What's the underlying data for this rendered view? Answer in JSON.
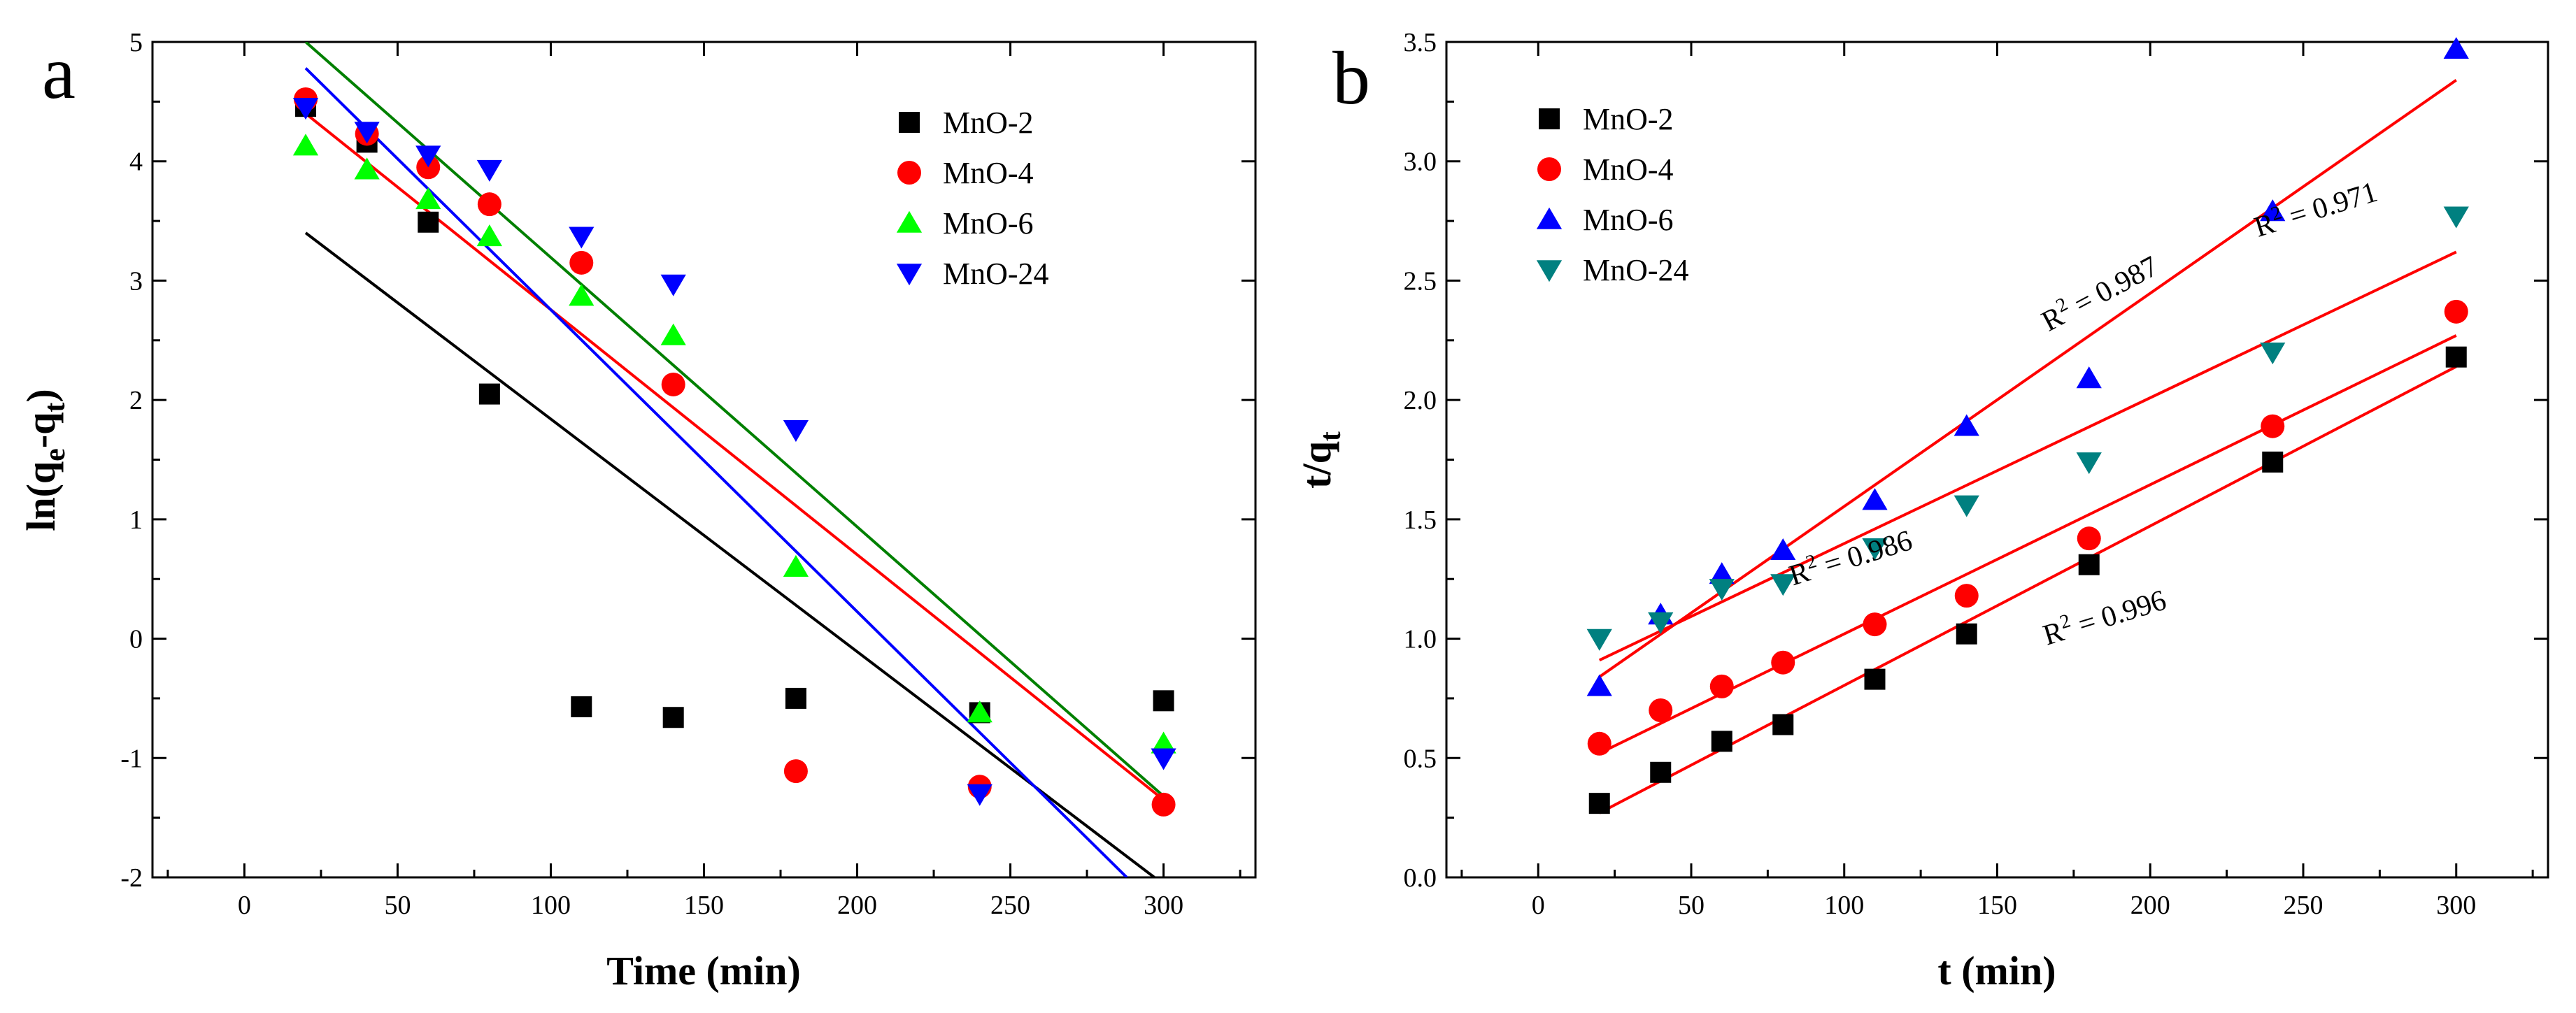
{
  "chart_data": [
    {
      "panel": "a",
      "type": "scatter",
      "xlabel": "Time (min)",
      "ylabel_parts": [
        "ln(q",
        "e",
        "-q",
        "t",
        ")"
      ],
      "xlim": [
        -30,
        330
      ],
      "ylim": [
        -2,
        5
      ],
      "xticks": [
        0,
        50,
        100,
        150,
        200,
        250,
        300
      ],
      "yticks": [
        -2,
        -1,
        0,
        1,
        2,
        3,
        4,
        5
      ],
      "series": [
        {
          "name": "MnO-2",
          "marker": "square",
          "color": "#000000",
          "x": [
            20,
            40,
            60,
            80,
            110,
            140,
            180,
            240,
            300
          ],
          "y": [
            4.46,
            4.16,
            3.49,
            2.05,
            -0.57,
            -0.66,
            -0.5,
            -0.62,
            -0.52
          ],
          "fit": {
            "x": [
              20,
              297
            ],
            "y": [
              3.4,
              -2.0
            ],
            "color": "#000000"
          }
        },
        {
          "name": "MnO-4",
          "marker": "circle",
          "color": "#ff0000",
          "x": [
            20,
            40,
            60,
            80,
            110,
            140,
            180,
            240,
            300
          ],
          "y": [
            4.52,
            4.23,
            3.95,
            3.64,
            3.15,
            2.13,
            -1.11,
            -1.24,
            -1.39
          ],
          "fit": {
            "x": [
              20,
              300
            ],
            "y": [
              4.4,
              -1.35
            ],
            "color": "#ff0000"
          }
        },
        {
          "name": "MnO-6",
          "marker": "triangle",
          "color": "#00ff00",
          "x": [
            20,
            40,
            60,
            80,
            110,
            140,
            180,
            240,
            300
          ],
          "y": [
            4.13,
            3.93,
            3.68,
            3.37,
            2.87,
            2.54,
            0.6,
            -0.62,
            -0.88
          ],
          "fit": {
            "x": [
              20,
              300
            ],
            "y": [
              5.0,
              -1.32
            ],
            "color": "#008000"
          }
        },
        {
          "name": "MnO-24",
          "marker": "triangle-down",
          "color": "#0000ff",
          "x": [
            20,
            40,
            60,
            80,
            110,
            140,
            180,
            240,
            300
          ],
          "y": [
            4.45,
            4.25,
            4.05,
            3.93,
            3.37,
            2.97,
            1.75,
            -1.3,
            -1.0
          ],
          "fit": {
            "x": [
              20,
              288
            ],
            "y": [
              4.78,
              -2.0
            ],
            "color": "#0000ff"
          }
        }
      ]
    },
    {
      "panel": "b",
      "type": "scatter",
      "xlabel": "t (min)",
      "ylabel_parts": [
        "t/q",
        "t"
      ],
      "xlim": [
        -30,
        330
      ],
      "ylim": [
        0.0,
        3.5
      ],
      "xticks": [
        0,
        50,
        100,
        150,
        200,
        250,
        300
      ],
      "yticks": [
        0.0,
        0.5,
        1.0,
        1.5,
        2.0,
        2.5,
        3.0,
        3.5
      ],
      "series": [
        {
          "name": "MnO-2",
          "marker": "square",
          "color": "#000000",
          "x": [
            20,
            40,
            60,
            80,
            110,
            140,
            180,
            240,
            300
          ],
          "y": [
            0.31,
            0.44,
            0.57,
            0.64,
            0.83,
            1.02,
            1.31,
            1.74,
            2.18
          ],
          "fit": {
            "x": [
              20,
              300
            ],
            "y": [
              0.27,
              2.14
            ],
            "color": "#ff0000"
          }
        },
        {
          "name": "MnO-4",
          "marker": "circle",
          "color": "#ff0000",
          "x": [
            20,
            40,
            60,
            80,
            110,
            140,
            180,
            240,
            300
          ],
          "y": [
            0.56,
            0.7,
            0.8,
            0.9,
            1.06,
            1.18,
            1.42,
            1.89,
            2.37
          ],
          "fit": {
            "x": [
              20,
              300
            ],
            "y": [
              0.52,
              2.27
            ],
            "color": "#ff0000"
          }
        },
        {
          "name": "MnO-6",
          "marker": "triangle",
          "color": "#0000ff",
          "x": [
            20,
            40,
            60,
            80,
            110,
            140,
            180,
            240,
            300
          ],
          "y": [
            0.8,
            1.1,
            1.27,
            1.37,
            1.58,
            1.89,
            2.09,
            2.79,
            3.47
          ],
          "fit": {
            "x": [
              20,
              300
            ],
            "y": [
              0.84,
              3.34
            ],
            "color": "#ff0000"
          }
        },
        {
          "name": "MnO-24",
          "marker": "triangle-down",
          "color": "#008080",
          "x": [
            20,
            40,
            60,
            80,
            110,
            140,
            180,
            240,
            300
          ],
          "y": [
            1.0,
            1.07,
            1.21,
            1.23,
            1.38,
            1.56,
            1.74,
            2.2,
            2.77
          ],
          "fit": {
            "x": [
              20,
              300
            ],
            "y": [
              0.91,
              2.62
            ],
            "color": "#ff0000"
          }
        }
      ],
      "annotations": [
        {
          "text": "0.987",
          "x": 185,
          "y": 2.41,
          "angle": -28
        },
        {
          "text": "0.971",
          "x": 255,
          "y": 2.76,
          "angle": -17
        },
        {
          "text": "0.986",
          "x": 103,
          "y": 1.3,
          "angle": -17
        },
        {
          "text": "0.996",
          "x": 186,
          "y": 1.05,
          "angle": -17
        }
      ],
      "annotation_prefix": [
        "R",
        "2",
        " = "
      ]
    }
  ]
}
